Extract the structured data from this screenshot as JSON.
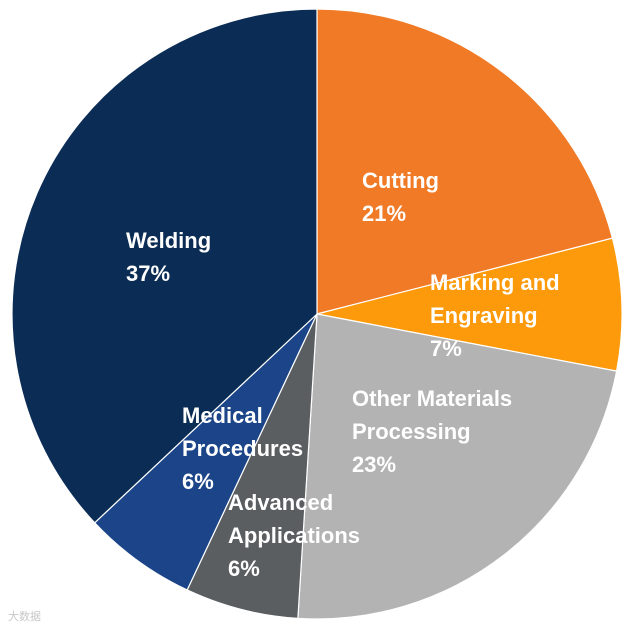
{
  "chart_data": {
    "type": "pie",
    "title": "",
    "start_angle_deg": 0,
    "direction": "clockwise",
    "slices": [
      {
        "name": "Cutting",
        "label_lines": [
          "Cutting"
        ],
        "value": 21,
        "value_label": "21%",
        "color": "#f07a26"
      },
      {
        "name": "Marking and Engraving",
        "label_lines": [
          "Marking and",
          "Engraving"
        ],
        "value": 7,
        "value_label": "7%",
        "color": "#fd9a0b"
      },
      {
        "name": "Other Materials Processing",
        "label_lines": [
          "Other Materials",
          "Processing"
        ],
        "value": 23,
        "value_label": "23%",
        "color": "#b3b3b3"
      },
      {
        "name": "Advanced Applications",
        "label_lines": [
          "Advanced",
          "Applications"
        ],
        "value": 6,
        "value_label": "6%",
        "color": "#5b5e61"
      },
      {
        "name": "Medical Procedures",
        "label_lines": [
          "Medical",
          "Procedures"
        ],
        "value": 6,
        "value_label": "6%",
        "color": "#1b4588"
      },
      {
        "name": "Welding",
        "label_lines": [
          "Welding"
        ],
        "value": 37,
        "value_label": "37%",
        "color": "#0b2d55"
      }
    ]
  },
  "watermark": {
    "text": "大数据"
  }
}
